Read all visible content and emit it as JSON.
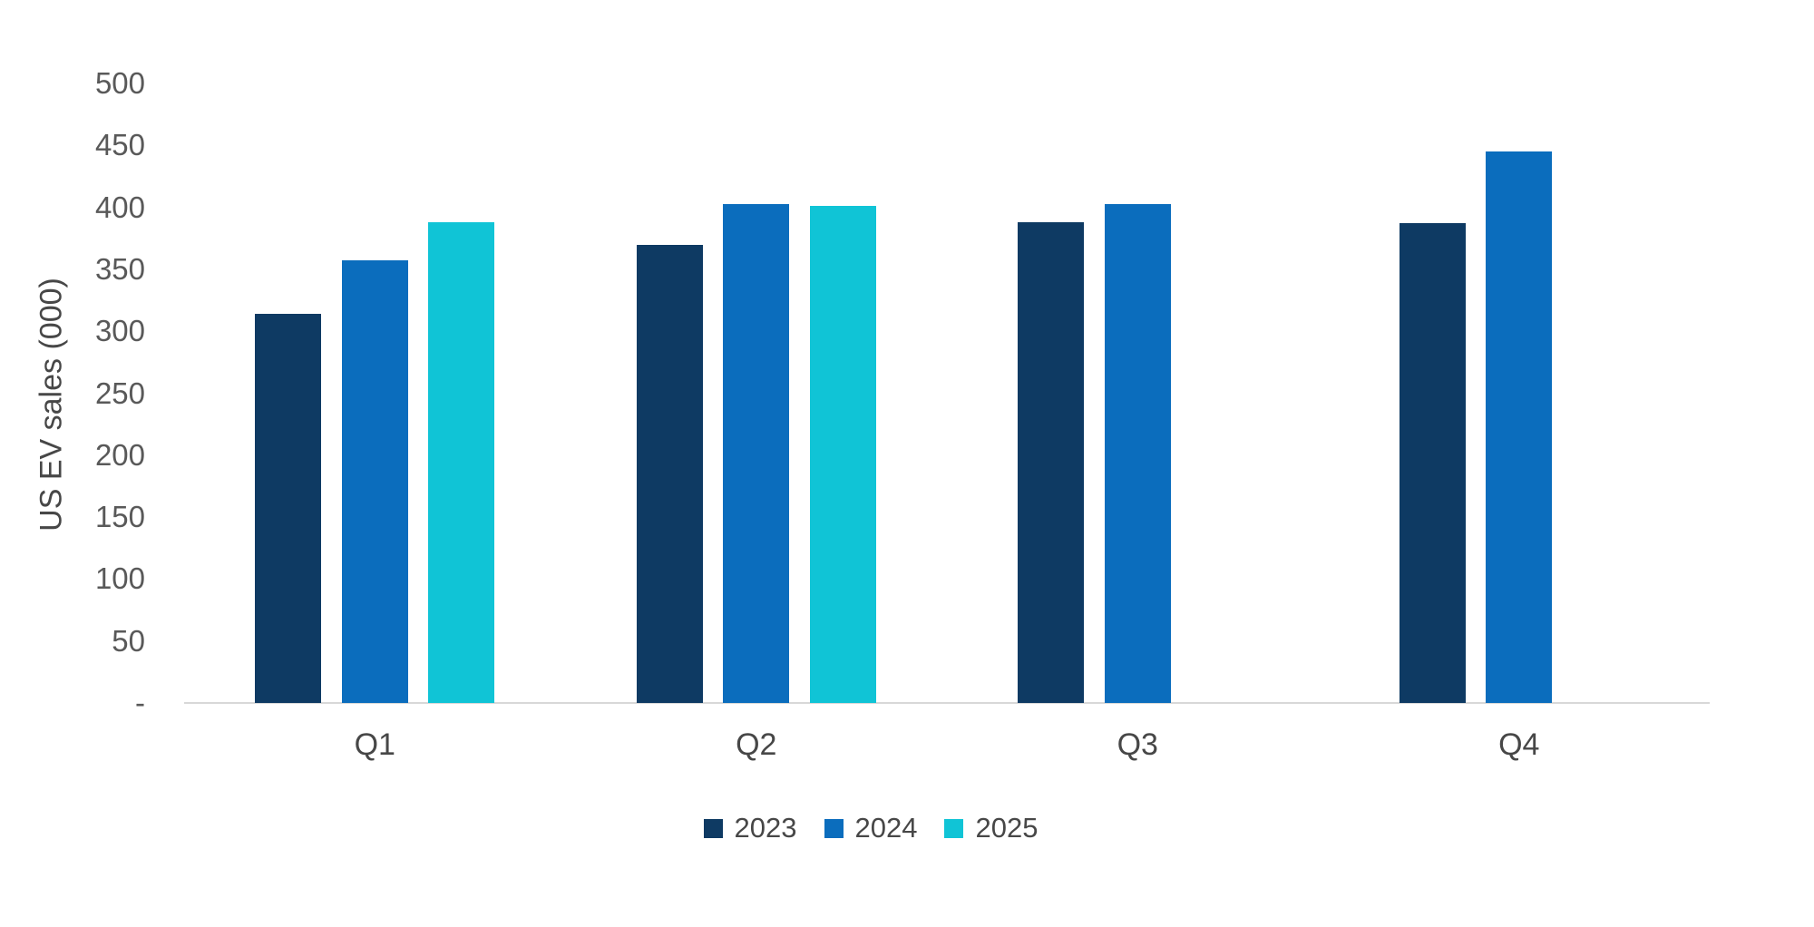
{
  "chart_data": {
    "type": "bar",
    "title": "",
    "ylabel": "US EV sales (000)",
    "xlabel": "",
    "categories": [
      "Q1",
      "Q2",
      "Q3",
      "Q4"
    ],
    "series": [
      {
        "name": "2023",
        "color": "#0E3A63",
        "values": [
          314,
          370,
          388,
          387
        ]
      },
      {
        "name": "2024",
        "color": "#0B6DBD",
        "values": [
          357,
          403,
          403,
          445
        ]
      },
      {
        "name": "2025",
        "color": "#10C4D6",
        "values": [
          388,
          401,
          null,
          null
        ]
      }
    ],
    "ylim": [
      0,
      500
    ],
    "ytick_step": 50,
    "yticks": [
      {
        "value": 0,
        "label": "-"
      },
      {
        "value": 50,
        "label": "50"
      },
      {
        "value": 100,
        "label": "100"
      },
      {
        "value": 150,
        "label": "150"
      },
      {
        "value": 200,
        "label": "200"
      },
      {
        "value": 250,
        "label": "250"
      },
      {
        "value": 300,
        "label": "300"
      },
      {
        "value": 350,
        "label": "350"
      },
      {
        "value": 400,
        "label": "400"
      },
      {
        "value": 450,
        "label": "450"
      },
      {
        "value": 500,
        "label": "500"
      }
    ],
    "grid": false,
    "legend_position": "bottom",
    "legend_labels": [
      "2023",
      "2024",
      "2025"
    ]
  },
  "styles": {
    "background": "#FFFFFF",
    "tick_text_color": "#595959",
    "label_text_color": "#474747",
    "axis_line_color": "#D8D8D8",
    "series_colors": [
      "#0E3A63",
      "#0B6DBD",
      "#10C4D6"
    ]
  }
}
